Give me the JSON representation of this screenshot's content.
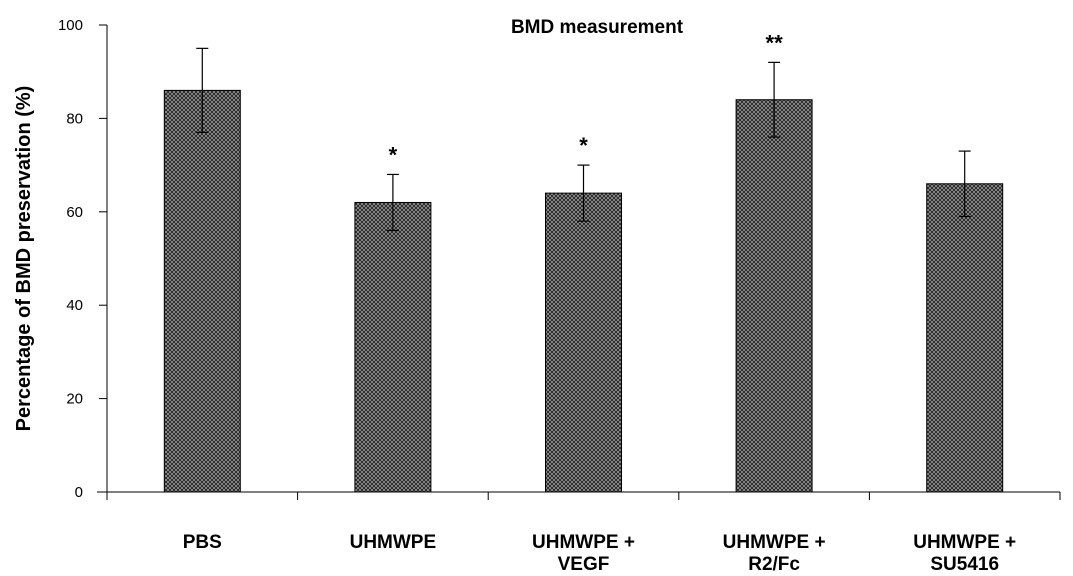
{
  "chart_data": {
    "type": "bar",
    "title": "BMD measurement",
    "xlabel": "",
    "ylabel": "Percentage of BMD preservation (%)",
    "ylim": [
      0,
      100
    ],
    "yticks": [
      0,
      20,
      40,
      60,
      80,
      100
    ],
    "grid": false,
    "categories": [
      [
        "PBS"
      ],
      [
        "UHMWPE"
      ],
      [
        "UHMWPE +",
        "VEGF"
      ],
      [
        "UHMWPE +",
        "R2/Fc"
      ],
      [
        "UHMWPE +",
        "SU5416"
      ]
    ],
    "values": [
      86,
      62,
      64,
      84,
      66
    ],
    "errors": [
      9,
      6,
      6,
      8,
      7
    ],
    "significance": [
      "",
      "*",
      "*",
      "**",
      ""
    ]
  }
}
